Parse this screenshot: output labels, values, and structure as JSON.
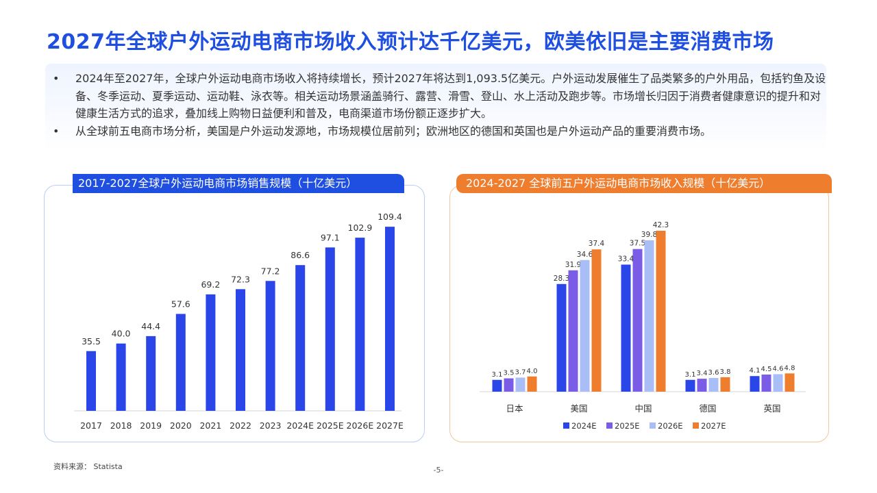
{
  "page": {
    "title": "2027年全球户外运动电商市场收入预计达千亿美元，欧美依旧是主要消费市场",
    "bullets": [
      "2024年至2027年，全球户外运动电商市场收入将持续增长，预计2027年将达到1,093.5亿美元。户外运动发展催生了品类繁多的户外用品，包括钓鱼及设备、冬季运动、夏季运动、运动鞋、泳衣等。相关运动场景涵盖骑行、露营、滑雪、登山、水上活动及跑步等。市场增长归因于消费者健康意识的提升和对健康生活方式的追求，叠加线上购物日益便利和普及，电商渠道市场份额正逐步扩大。",
      "从全球前五电商市场分析，美国是户外运动发源地，市场规模位居前列；欧洲地区的德国和英国也是户外运动产品的重要消费市场。"
    ],
    "bullet_symbol": "•",
    "source": "资料来源：  Statista",
    "page_number": "-5-"
  },
  "chart_data": [
    {
      "type": "bar",
      "title": "2017-2027全球户外运动电商市场销售规模（十亿美元）",
      "categories": [
        "2017",
        "2018",
        "2019",
        "2020",
        "2021",
        "2022",
        "2023",
        "2024E",
        "2025E",
        "2026E",
        "2027E"
      ],
      "values": [
        35.5,
        40.0,
        44.4,
        57.6,
        69.2,
        72.3,
        77.2,
        86.6,
        97.1,
        102.9,
        109.4
      ],
      "value_labels": [
        "35.5",
        "40.0",
        "44.4",
        "57.6",
        "69.2",
        "72.3",
        "77.2",
        "86.6",
        "97.1",
        "102.9",
        "109.4"
      ],
      "ylim": [
        0,
        118
      ],
      "color": "#2a46e8",
      "grid": false,
      "legend": "none"
    },
    {
      "type": "bar",
      "title": "2024-2027 全球前五户外运动电商市场收入规模（十亿美元）",
      "categories": [
        "日本",
        "美国",
        "中国",
        "德国",
        "英国"
      ],
      "series": [
        {
          "name": "2024E",
          "color": "#2a46e8",
          "values": [
            3.1,
            28.3,
            33.4,
            3.1,
            4.1
          ]
        },
        {
          "name": "2025E",
          "color": "#7b5ce6",
          "values": [
            3.5,
            31.9,
            37.5,
            3.4,
            4.5
          ]
        },
        {
          "name": "2026E",
          "color": "#a9bdf7",
          "values": [
            3.7,
            34.6,
            39.8,
            3.6,
            4.6
          ]
        },
        {
          "name": "2027E",
          "color": "#ef7d2e",
          "values": [
            4.0,
            37.4,
            42.3,
            3.8,
            4.8
          ]
        }
      ],
      "ylim": [
        0,
        45
      ],
      "grid": false,
      "legend": "bottom"
    }
  ]
}
